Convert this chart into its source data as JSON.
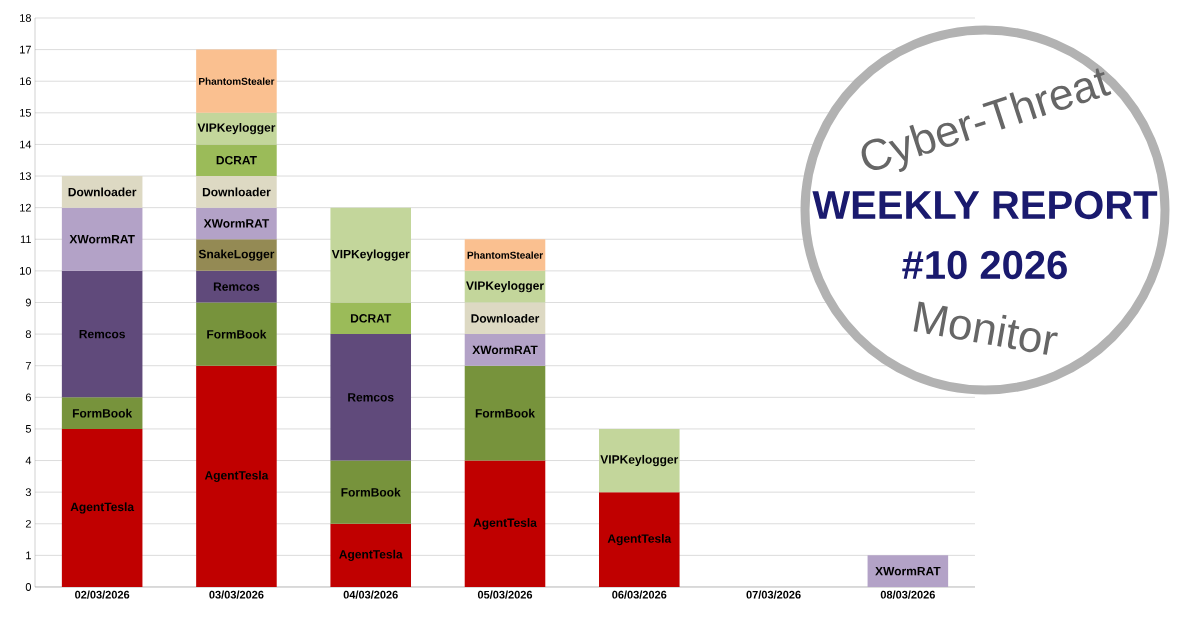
{
  "chart_data": {
    "type": "bar",
    "stacked": true,
    "title": "WEEKLY REPORT",
    "subtitle": "#10 2026",
    "annotations": [
      "Cyber-Threat",
      "Monitor"
    ],
    "categories": [
      "02/03/2026",
      "03/03/2026",
      "04/03/2026",
      "05/03/2026",
      "06/03/2026",
      "07/03/2026",
      "08/03/2026"
    ],
    "series": [
      {
        "name": "AgentTesla",
        "color": "#c00000",
        "values": [
          5,
          7,
          2,
          4,
          3,
          null,
          null
        ]
      },
      {
        "name": "FormBook",
        "color": "#77933c",
        "values": [
          1,
          2,
          2,
          3,
          null,
          null,
          null
        ]
      },
      {
        "name": "Remcos",
        "color": "#604a7b",
        "values": [
          4,
          1,
          4,
          null,
          null,
          null,
          null
        ]
      },
      {
        "name": "SnakeLogger",
        "color": "#948a54",
        "values": [
          null,
          1,
          null,
          null,
          null,
          null,
          null
        ]
      },
      {
        "name": "XWormRAT",
        "color": "#b3a2c7",
        "values": [
          2,
          1,
          null,
          1,
          null,
          null,
          1
        ]
      },
      {
        "name": "Downloader",
        "color": "#ddd9c3",
        "values": [
          1,
          1,
          null,
          1,
          null,
          null,
          null
        ]
      },
      {
        "name": "DCRAT",
        "color": "#9bbb59",
        "values": [
          null,
          1,
          1,
          null,
          null,
          null,
          null
        ]
      },
      {
        "name": "VIPKeylogger",
        "color": "#c3d69b",
        "values": [
          null,
          1,
          3,
          1,
          2,
          null,
          null
        ]
      },
      {
        "name": "PhantomStealer",
        "color": "#fac090",
        "values": [
          null,
          2,
          null,
          1,
          null,
          null,
          null
        ]
      }
    ],
    "ylim": [
      0,
      18
    ],
    "yticks": [
      0,
      1,
      2,
      3,
      4,
      5,
      6,
      7,
      8,
      9,
      10,
      11,
      12,
      13,
      14,
      15,
      16,
      17,
      18
    ],
    "grid": "y"
  }
}
